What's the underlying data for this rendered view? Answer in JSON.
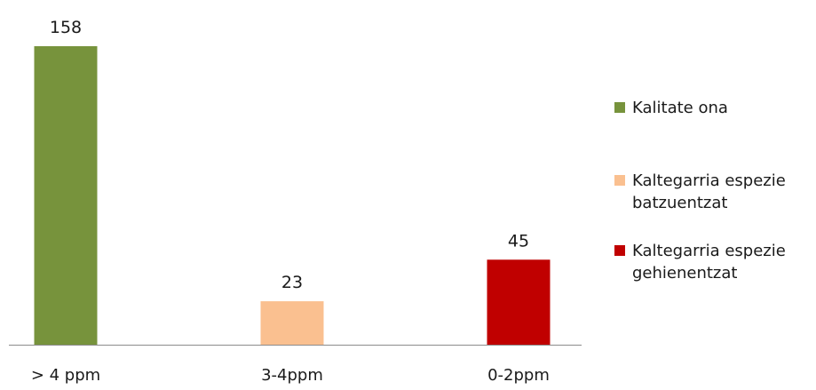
{
  "chart_data": {
    "type": "bar",
    "categories": [
      "> 4 ppm",
      "3-4ppm",
      "0-2ppm"
    ],
    "values": [
      158,
      23,
      45
    ],
    "value_labels": [
      "158",
      "23",
      "45"
    ],
    "colors": [
      "#77933c",
      "#fac090",
      "#c00000"
    ],
    "ylim": [
      0,
      160
    ],
    "grid": false,
    "legend_position": "right",
    "legend": [
      {
        "lines": [
          "Kalitate ona"
        ],
        "color": "#77933c"
      },
      {
        "lines": [
          "Kaltegarria espezie",
          "batzuentzat"
        ],
        "color": "#fac090"
      },
      {
        "lines": [
          "Kaltegarria espezie",
          "gehienentzat"
        ],
        "color": "#c00000"
      }
    ],
    "axis_color": "#8c8c8c"
  }
}
